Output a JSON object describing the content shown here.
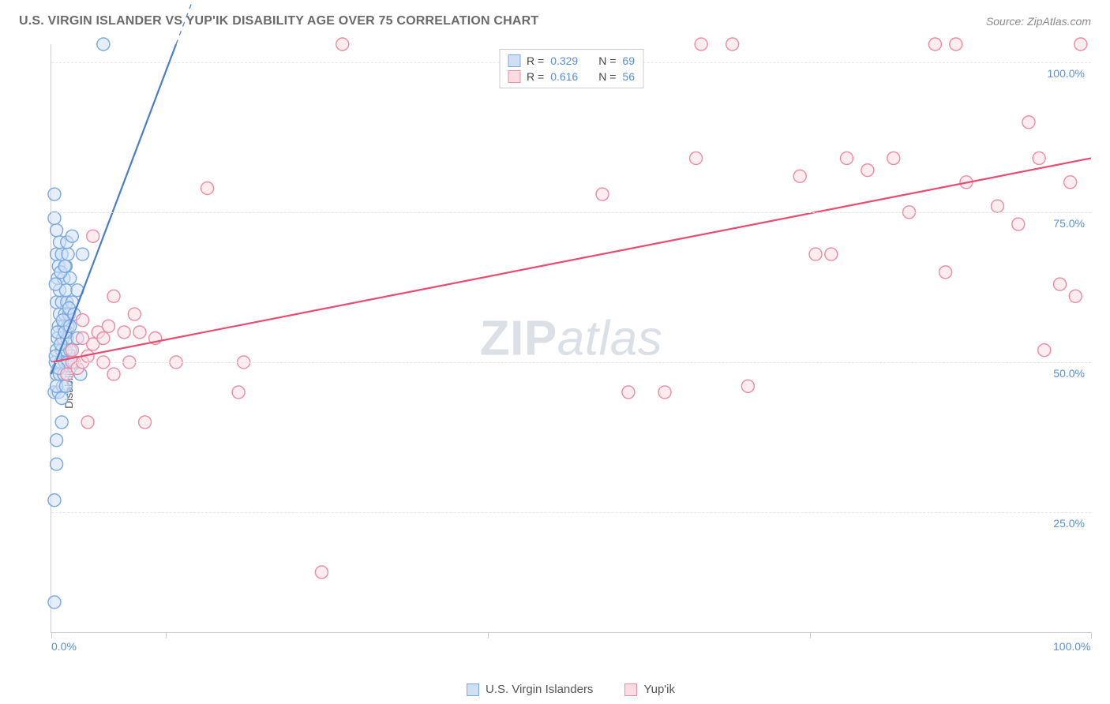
{
  "header": {
    "title": "U.S. VIRGIN ISLANDER VS YUP'IK DISABILITY AGE OVER 75 CORRELATION CHART",
    "source": "Source: ZipAtlas.com"
  },
  "chart": {
    "type": "scatter",
    "ylabel": "Disability Age Over 75",
    "watermark_bold": "ZIP",
    "watermark_rest": "atlas",
    "xlim": [
      0,
      100
    ],
    "ylim": [
      5,
      103
    ],
    "x_ticks": [
      0,
      11,
      42,
      73,
      100
    ],
    "x_tick_labels": {
      "0": "0.0%",
      "100": "100.0%"
    },
    "y_gridlines": [
      25,
      50,
      75,
      100
    ],
    "y_tick_labels": {
      "25": "25.0%",
      "50": "50.0%",
      "75": "75.0%",
      "100": "100.0%"
    },
    "background_color": "#ffffff",
    "grid_color": "#e5e5e5",
    "axis_color": "#cccccc",
    "marker_radius": 8,
    "marker_stroke_width": 1.4,
    "series": [
      {
        "name": "U.S. Virgin Islanders",
        "fill": "#cfe0f5",
        "stroke": "#7aa9de",
        "fill_opacity": 0.55,
        "trend": {
          "x1": 0,
          "y1": 48,
          "x2": 12,
          "y2": 103,
          "dash_extend": true,
          "stroke": "#4a7dc7",
          "width": 2.2
        },
        "legend_r": "0.329",
        "legend_n": "69",
        "points": [
          [
            0.3,
            10
          ],
          [
            0.3,
            27
          ],
          [
            0.5,
            33
          ],
          [
            0.5,
            37
          ],
          [
            1.0,
            40
          ],
          [
            0.3,
            45
          ],
          [
            0.7,
            45
          ],
          [
            1.1,
            46
          ],
          [
            0.5,
            48
          ],
          [
            0.8,
            48
          ],
          [
            1.2,
            48
          ],
          [
            0.4,
            50
          ],
          [
            0.9,
            50
          ],
          [
            1.3,
            50
          ],
          [
            1.6,
            50
          ],
          [
            0.5,
            52
          ],
          [
            1.0,
            52
          ],
          [
            1.4,
            52
          ],
          [
            1.8,
            52
          ],
          [
            0.6,
            54
          ],
          [
            1.1,
            54
          ],
          [
            1.5,
            54
          ],
          [
            0.7,
            56
          ],
          [
            1.2,
            56
          ],
          [
            1.6,
            56
          ],
          [
            0.8,
            58
          ],
          [
            1.3,
            58
          ],
          [
            1.7,
            58
          ],
          [
            0.5,
            60
          ],
          [
            1.0,
            60
          ],
          [
            1.5,
            60
          ],
          [
            2.0,
            60
          ],
          [
            0.8,
            62
          ],
          [
            1.4,
            62
          ],
          [
            0.6,
            64
          ],
          [
            1.2,
            64
          ],
          [
            1.8,
            64
          ],
          [
            0.7,
            66
          ],
          [
            1.4,
            66
          ],
          [
            0.5,
            68
          ],
          [
            1.0,
            68
          ],
          [
            1.6,
            68
          ],
          [
            0.8,
            70
          ],
          [
            1.5,
            70
          ],
          [
            2.0,
            71
          ],
          [
            0.5,
            72
          ],
          [
            0.3,
            74
          ],
          [
            0.3,
            78
          ],
          [
            5.0,
            103
          ],
          [
            2.5,
            54
          ],
          [
            2.8,
            48
          ],
          [
            2.2,
            50
          ],
          [
            2.5,
            62
          ],
          [
            3.0,
            68
          ],
          [
            0.4,
            63
          ],
          [
            0.9,
            65
          ],
          [
            1.3,
            66
          ],
          [
            0.6,
            55
          ],
          [
            1.1,
            57
          ],
          [
            1.7,
            59
          ],
          [
            0.4,
            51
          ],
          [
            0.9,
            53
          ],
          [
            1.3,
            55
          ],
          [
            1.8,
            56
          ],
          [
            2.2,
            58
          ],
          [
            0.5,
            46
          ],
          [
            1.0,
            44
          ],
          [
            1.4,
            46
          ],
          [
            0.7,
            49
          ]
        ]
      },
      {
        "name": "Yup'ik",
        "fill": "#fbdce3",
        "stroke": "#ec8ba2",
        "fill_opacity": 0.55,
        "trend": {
          "x1": 0,
          "y1": 50,
          "x2": 100,
          "y2": 84,
          "dash_extend": false,
          "stroke": "#e94b71",
          "width": 2.2
        },
        "legend_r": "0.616",
        "legend_n": "56",
        "points": [
          [
            1.5,
            48
          ],
          [
            2.0,
            50
          ],
          [
            2.5,
            49
          ],
          [
            3.0,
            50
          ],
          [
            3.5,
            51
          ],
          [
            4.0,
            53
          ],
          [
            4.5,
            55
          ],
          [
            5.0,
            54
          ],
          [
            5.5,
            56
          ],
          [
            3.0,
            57
          ],
          [
            4.0,
            71
          ],
          [
            6.0,
            61
          ],
          [
            7.0,
            55
          ],
          [
            7.5,
            50
          ],
          [
            8.0,
            58
          ],
          [
            8.5,
            55
          ],
          [
            12.0,
            50
          ],
          [
            15.0,
            79
          ],
          [
            18.0,
            45
          ],
          [
            18.5,
            50
          ],
          [
            3.5,
            40
          ],
          [
            9.0,
            40
          ],
          [
            26.0,
            15
          ],
          [
            28.0,
            103
          ],
          [
            53.0,
            78
          ],
          [
            55.5,
            45
          ],
          [
            59.0,
            45
          ],
          [
            62.5,
            103
          ],
          [
            62.0,
            84
          ],
          [
            65.5,
            103
          ],
          [
            67.0,
            46
          ],
          [
            72.0,
            81
          ],
          [
            73.5,
            68
          ],
          [
            75.0,
            68
          ],
          [
            76.5,
            84
          ],
          [
            78.5,
            82
          ],
          [
            81.0,
            84
          ],
          [
            82.5,
            75
          ],
          [
            85.0,
            103
          ],
          [
            87.0,
            103
          ],
          [
            86.0,
            65
          ],
          [
            88.0,
            80
          ],
          [
            91.0,
            76
          ],
          [
            93.0,
            73
          ],
          [
            94.0,
            90
          ],
          [
            95.0,
            84
          ],
          [
            95.5,
            52
          ],
          [
            97.0,
            63
          ],
          [
            98.0,
            80
          ],
          [
            98.5,
            61
          ],
          [
            99.0,
            103
          ],
          [
            2.0,
            52
          ],
          [
            3.0,
            54
          ],
          [
            5.0,
            50
          ],
          [
            6.0,
            48
          ],
          [
            10.0,
            54
          ]
        ]
      }
    ]
  },
  "legend_bottom": {
    "items": [
      {
        "label": "U.S. Virgin Islanders",
        "fill": "#cfe0f5",
        "stroke": "#7aa9de"
      },
      {
        "label": "Yup'ik",
        "fill": "#fbdce3",
        "stroke": "#ec8ba2"
      }
    ]
  }
}
